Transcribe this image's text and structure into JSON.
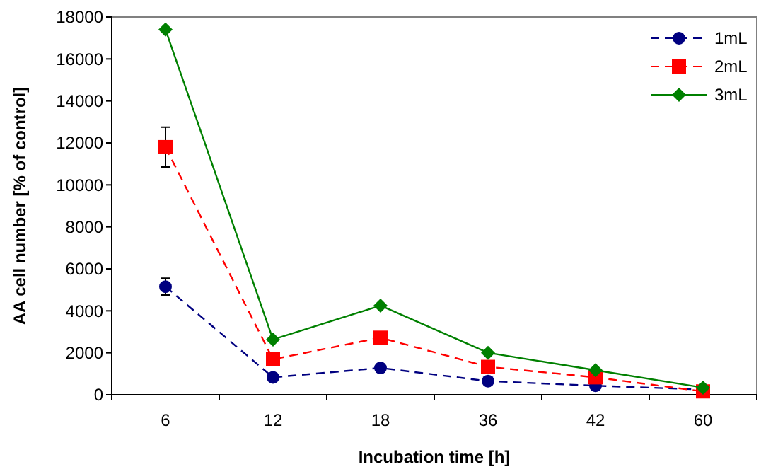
{
  "chart_data": {
    "type": "line",
    "xlabel": "Incubation time [h]",
    "ylabel": "AA cell number [% of control]",
    "categories": [
      "6",
      "12",
      "18",
      "36",
      "42",
      "60"
    ],
    "ylim": [
      0,
      18000
    ],
    "yticks": [
      0,
      2000,
      4000,
      6000,
      8000,
      10000,
      12000,
      14000,
      16000,
      18000
    ],
    "legend": "top right",
    "grid": false,
    "series": [
      {
        "name": "1mL",
        "color": "#000080",
        "marker": "circle",
        "line_style": "dashed",
        "values": [
          5150,
          830,
          1280,
          650,
          430,
          250
        ],
        "errors": [
          400,
          null,
          null,
          null,
          null,
          null
        ]
      },
      {
        "name": "2mL",
        "color": "#ff0000",
        "marker": "square",
        "line_style": "dashed",
        "values": [
          11800,
          1690,
          2720,
          1330,
          830,
          160
        ],
        "errors": [
          950,
          null,
          null,
          null,
          null,
          null
        ]
      },
      {
        "name": "3mL",
        "color": "#008000",
        "marker": "diamond",
        "line_style": "solid",
        "values": [
          17400,
          2630,
          4250,
          2000,
          1170,
          340
        ],
        "errors": [
          null,
          null,
          null,
          null,
          null,
          null
        ]
      }
    ]
  }
}
